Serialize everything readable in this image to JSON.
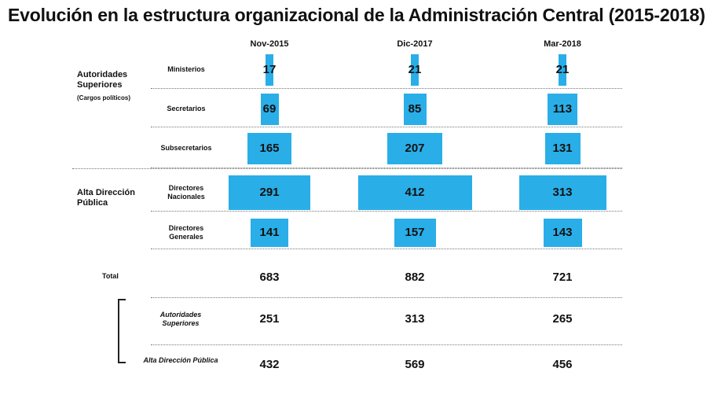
{
  "title": "Evolución en la estructura organizacional de la Administración Central (2015-2018)",
  "colors": {
    "bar": "#29aee8",
    "text": "#111111",
    "separator": "#777777"
  },
  "chart_data": {
    "type": "bar",
    "orientation": "horizontal-centered",
    "title": "Evolución en la estructura organizacional de la Administración Central (2015-2018)",
    "periods": [
      "Nov-2015",
      "Dic-2017",
      "Mar-2018"
    ],
    "groups": [
      {
        "label": "Autoridades Superiores",
        "sublabel": "(Cargos políticos)"
      },
      {
        "label": "Alta Dirección Pública",
        "sublabel": ""
      }
    ],
    "rows": [
      {
        "label": "Ministerios",
        "group": 0,
        "values": [
          17,
          21,
          21
        ]
      },
      {
        "label": "Secretarios",
        "group": 0,
        "values": [
          69,
          85,
          113
        ]
      },
      {
        "label": "Subsecretarios",
        "group": 0,
        "values": [
          165,
          207,
          131
        ]
      },
      {
        "label": "Directores Nacionales",
        "group": 1,
        "values": [
          291,
          412,
          313
        ]
      },
      {
        "label": "Directores Generales",
        "group": 1,
        "values": [
          141,
          157,
          143
        ]
      }
    ],
    "totals": {
      "label": "Total",
      "values": [
        683,
        882,
        721
      ],
      "breakdown": [
        {
          "label": "Autoridades Superiores",
          "values": [
            251,
            313,
            265
          ]
        },
        {
          "label": "Alta Dirección Pública",
          "values": [
            432,
            569,
            456
          ]
        }
      ]
    },
    "value_scale_max": 412,
    "grid": false,
    "legend": "none"
  }
}
